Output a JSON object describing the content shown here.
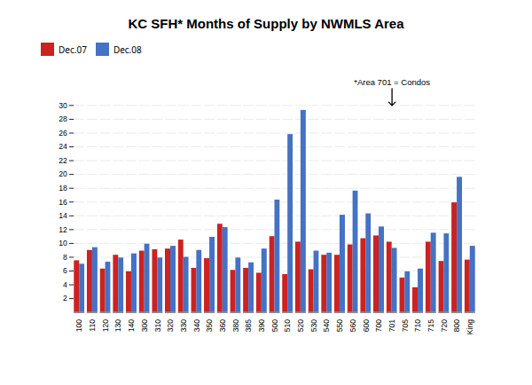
{
  "chart_data": {
    "type": "bar",
    "title": "KC SFH* Months of Supply by NWMLS Area",
    "categories": [
      "100",
      "110",
      "120",
      "130",
      "140",
      "300",
      "310",
      "320",
      "330",
      "340",
      "350",
      "360",
      "380",
      "385",
      "390",
      "500",
      "510",
      "520",
      "530",
      "540",
      "550",
      "560",
      "600",
      "700",
      "701",
      "705",
      "710",
      "715",
      "720",
      "800",
      "King"
    ],
    "series": [
      {
        "name": "Dec.07",
        "color": "#CC2222",
        "values": [
          7.5,
          9.0,
          6.3,
          8.3,
          5.9,
          8.9,
          9.1,
          9.2,
          10.5,
          6.4,
          7.8,
          12.8,
          6.1,
          6.4,
          5.7,
          11.0,
          5.5,
          10.2,
          6.2,
          8.3,
          8.3,
          9.8,
          10.7,
          11.1,
          10.2,
          5.0,
          3.6,
          10.2,
          7.4,
          15.9,
          7.6
        ]
      },
      {
        "name": "Dec.08",
        "color": "#4472C4",
        "values": [
          7.0,
          9.4,
          7.3,
          7.9,
          8.5,
          9.9,
          7.9,
          9.6,
          8.0,
          9.0,
          10.9,
          12.3,
          7.9,
          7.2,
          9.2,
          16.3,
          25.8,
          29.3,
          8.9,
          8.6,
          14.1,
          17.6,
          14.3,
          12.4,
          9.3,
          5.9,
          6.3,
          11.5,
          11.4,
          19.6,
          9.6
        ]
      }
    ],
    "annotations": [
      {
        "text": "*Area 701 = Condos",
        "x": "701",
        "y": 30
      }
    ],
    "ylim": [
      0,
      30
    ],
    "yticks": [
      2,
      4,
      6,
      8,
      10,
      12,
      14,
      16,
      18,
      20,
      22,
      24,
      26,
      28,
      30
    ],
    "grid": true,
    "legend": "top"
  }
}
